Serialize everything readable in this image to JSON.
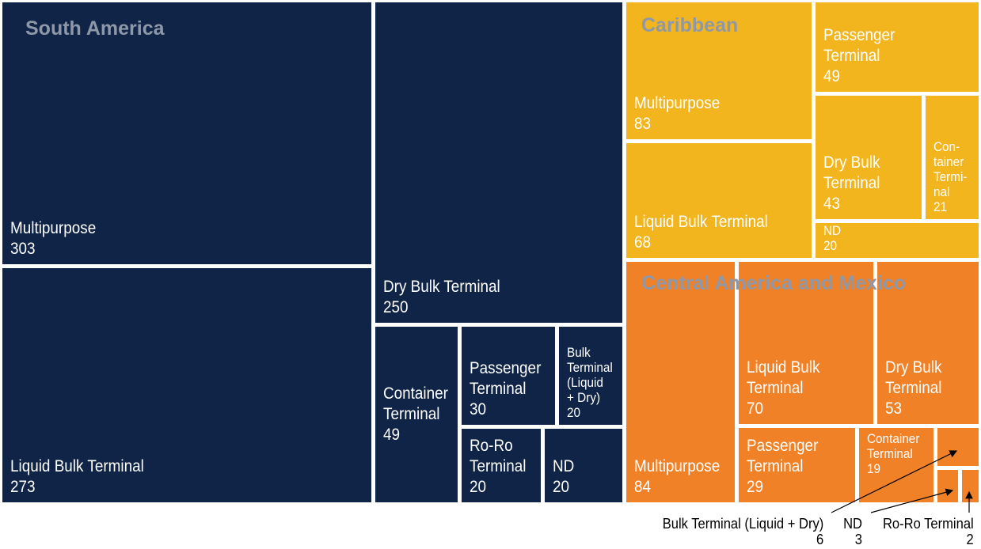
{
  "colors": {
    "South America": "#0f2447",
    "Caribbean": "#f2b51e",
    "Central America and Mexico": "#f08127",
    "region_label": "#8f98a8",
    "label_text": "#ffffff",
    "external_text": "#000000"
  },
  "chart_data": {
    "type": "treemap",
    "groups": [
      {
        "name": "South America",
        "items": [
          {
            "label": "Multipurpose",
            "value": 303
          },
          {
            "label": "Liquid Bulk Terminal",
            "value": 273
          },
          {
            "label": "Dry Bulk Terminal",
            "value": 250
          },
          {
            "label": "Container\nTerminal",
            "value": 49
          },
          {
            "label": "Passenger\nTerminal",
            "value": 30
          },
          {
            "label": "Bulk\nTerminal\n(Liquid\n+ Dry)",
            "value": 20
          },
          {
            "label": "Ro-Ro\nTerminal",
            "value": 20
          },
          {
            "label": "ND",
            "value": 20
          }
        ]
      },
      {
        "name": "Caribbean",
        "items": [
          {
            "label": "Multipurpose",
            "value": 83
          },
          {
            "label": "Liquid Bulk Terminal",
            "value": 68
          },
          {
            "label": "Passenger\nTerminal",
            "value": 49
          },
          {
            "label": "Dry Bulk\nTerminal",
            "value": 43
          },
          {
            "label": "Con-\ntainer\nTermi-\nnal",
            "value": 21
          },
          {
            "label": "ND",
            "value": 20
          }
        ]
      },
      {
        "name": "Central America and Mexico",
        "items": [
          {
            "label": "Multipurpose",
            "value": 84
          },
          {
            "label": "Liquid Bulk\nTerminal",
            "value": 70
          },
          {
            "label": "Dry Bulk\nTerminal",
            "value": 53
          },
          {
            "label": "Passenger\nTerminal",
            "value": 29
          },
          {
            "label": "Container\nTerminal",
            "value": 19
          },
          {
            "label": "Bulk Terminal (Liquid + Dry)",
            "value": 6
          },
          {
            "label": "ND",
            "value": 3
          },
          {
            "label": "Ro-Ro Terminal",
            "value": 2
          }
        ]
      }
    ]
  }
}
